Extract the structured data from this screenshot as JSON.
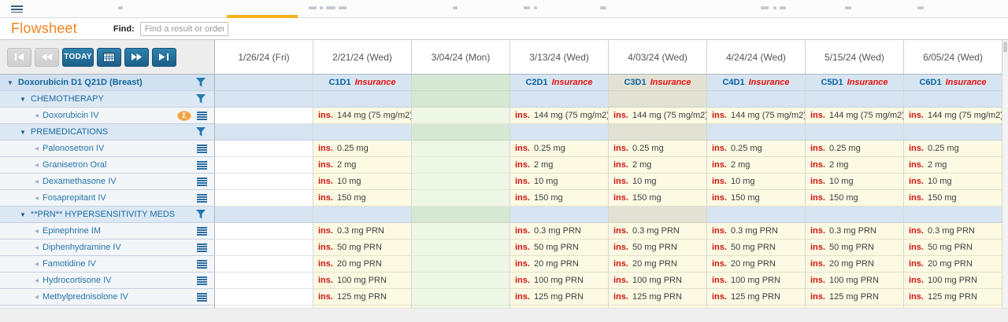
{
  "header": {
    "title": "Flowsheet",
    "find_label": "Find:",
    "find_placeholder": "Find a result or order"
  },
  "toolbar": {
    "today_label": "TODAY"
  },
  "icons": {
    "menu": "hamburger-icon",
    "collapse_arrow": "▼",
    "leaf_arrow": "◂",
    "filter": "funnel-icon",
    "row_menu": "menu-icon",
    "sigma_badge": "Σ"
  },
  "columns": [
    "1/26/24 (Fri)",
    "2/21/24 (Wed)",
    "3/04/24 (Mon)",
    "3/13/24 (Wed)",
    "4/03/24 (Wed)",
    "4/24/24 (Wed)",
    "5/15/24 (Wed)",
    "6/05/24 (Wed)"
  ],
  "cycles": [
    {
      "col": 1,
      "code": "C1D1",
      "tag": "Insurance"
    },
    {
      "col": 3,
      "code": "C2D1",
      "tag": "Insurance"
    },
    {
      "col": 4,
      "code": "C3D1",
      "tag": "Insurance"
    },
    {
      "col": 5,
      "code": "C4D1",
      "tag": "Insurance"
    },
    {
      "col": 6,
      "code": "C5D1",
      "tag": "Insurance"
    },
    {
      "col": 7,
      "code": "C6D1",
      "tag": "Insurance"
    }
  ],
  "grid": {
    "prefix": "ins.",
    "value_columns": [
      1,
      3,
      4,
      5,
      6,
      7
    ],
    "empty_green_column": 2,
    "empty_white_column": 0,
    "highlighted_group_column": 4
  },
  "rows": [
    {
      "type": "protocol",
      "label": "Doxorubicin D1 Q21D (Breast)",
      "has_filter": true
    },
    {
      "type": "group",
      "label": "CHEMOTHERAPY",
      "has_filter": true
    },
    {
      "type": "leaf",
      "label": "Doxorubicin IV",
      "value": "144 mg (75 mg/m2)",
      "badge": "Σ"
    },
    {
      "type": "group",
      "label": "PREMEDICATIONS",
      "has_filter": true
    },
    {
      "type": "leaf",
      "label": "Palonosetron IV",
      "value": "0.25 mg"
    },
    {
      "type": "leaf",
      "label": "Granisetron Oral",
      "value": "2 mg"
    },
    {
      "type": "leaf",
      "label": "Dexamethasone IV",
      "value": "10 mg"
    },
    {
      "type": "leaf",
      "label": "Fosaprepitant IV",
      "value": "150 mg"
    },
    {
      "type": "group",
      "label": "**PRN** HYPERSENSITIVITY MEDS",
      "has_filter": true
    },
    {
      "type": "leaf",
      "label": "Epinephrine IM",
      "value": "0.3 mg PRN"
    },
    {
      "type": "leaf",
      "label": "Diphenhydramine IV",
      "value": "50 mg PRN"
    },
    {
      "type": "leaf",
      "label": "Famotidine IV",
      "value": "20 mg PRN"
    },
    {
      "type": "leaf",
      "label": "Hydrocortisone IV",
      "value": "100 mg PRN"
    },
    {
      "type": "leaf",
      "label": "Methylprednisolone IV",
      "value": "125 mg PRN"
    }
  ],
  "colors": {
    "accent_orange": "#f5821f",
    "tree_blue": "#1b6ca8",
    "cycle_blue": "#0a61a4",
    "insurance_red": "#e8100c",
    "ins_red": "#cf1310",
    "cell_yellow": "#fdfae4",
    "cell_green": "#eef6e6",
    "group_blue": "#d7e5f2",
    "group_green": "#d6e7d2",
    "group_beige": "#e2e2d4",
    "button_blue": "#1b5f89",
    "tab_indicator_yellow": "#f2b319",
    "badge_orange": "#f0a344"
  }
}
